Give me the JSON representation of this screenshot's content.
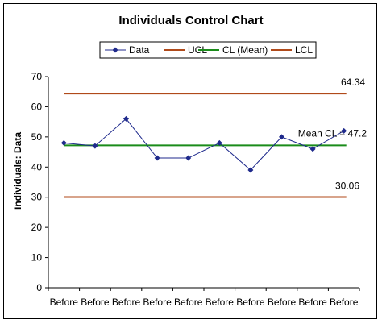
{
  "chart_data": {
    "type": "line",
    "title": "Individuals Control Chart",
    "xlabel": "",
    "ylabel": "Individuals: Data",
    "ylim": [
      0,
      70
    ],
    "yticks": [
      0,
      10,
      20,
      30,
      40,
      50,
      60,
      70
    ],
    "grid": false,
    "legend_position": "top",
    "categories": [
      "Before",
      "Before",
      "Before",
      "Before",
      "Before",
      "Before",
      "Before",
      "Before",
      "Before",
      "Before"
    ],
    "series": [
      {
        "name": "Data",
        "values": [
          48,
          47,
          56,
          43,
          43,
          48,
          39,
          50,
          46,
          52
        ],
        "color": "#1F2A8C"
      },
      {
        "name": "UCL",
        "value": 64.34,
        "color": "#B04A1A"
      },
      {
        "name": "CL (Mean)",
        "value": 47.2,
        "color": "#1A8C1A"
      },
      {
        "name": "LCL",
        "value": 30.06,
        "color": "#B04A1A"
      }
    ],
    "annotations": {
      "ucl": "64.34",
      "cl": "Mean CL = 47.2",
      "lcl": "30.06"
    }
  }
}
